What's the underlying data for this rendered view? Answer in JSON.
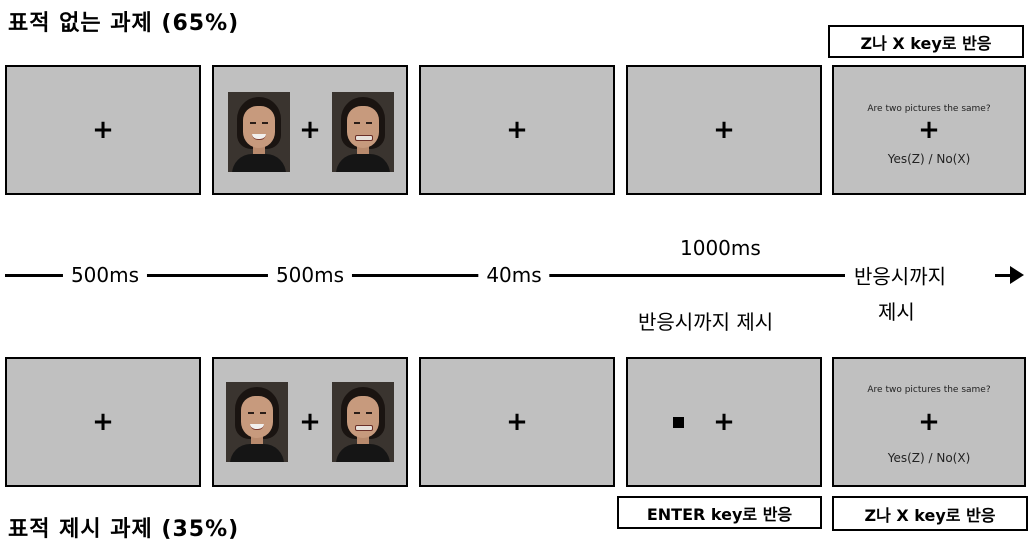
{
  "top_title": "표적 없는 과제 (65%)",
  "bottom_title": "표적 제시 과제 (35%)",
  "keys": {
    "zx_top": "Z나 X key로 반응",
    "enter_bottom": "ENTER key로 반응",
    "zx_bottom": "Z나 X key로 반응"
  },
  "fixation": "+",
  "question": "Are two pictures the same?",
  "answer": "Yes(Z) / No(X)",
  "timeline": {
    "t1": "500ms",
    "t2": "500ms",
    "t3": "40ms",
    "t4_top": "1000ms",
    "t4_bottom": "반응시까지 제시",
    "t5_line1": "반응시까지",
    "t5_line2": "제시"
  }
}
